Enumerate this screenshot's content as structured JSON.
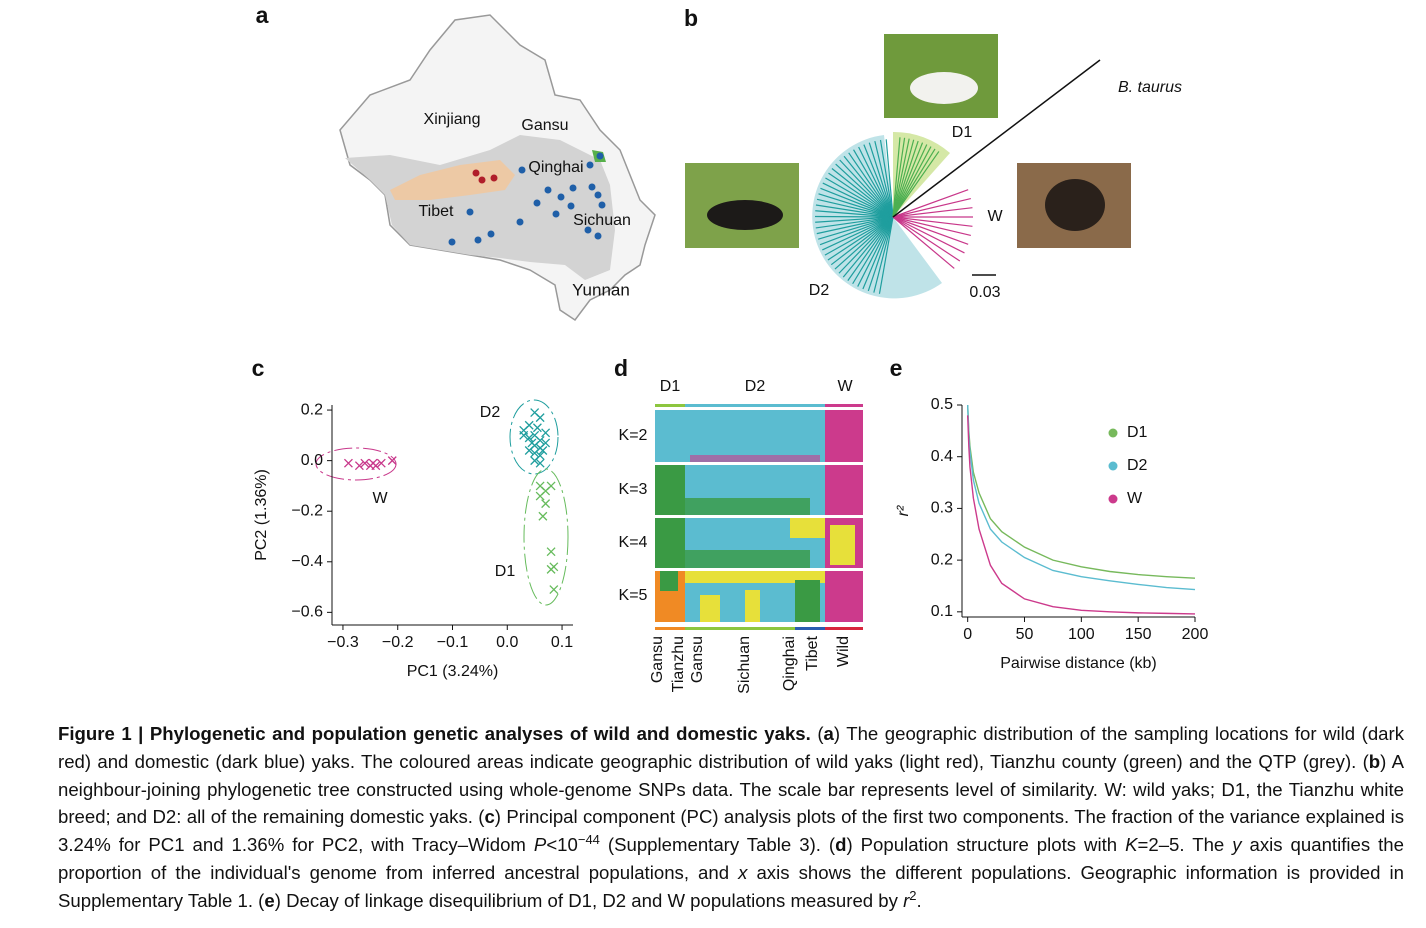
{
  "panels": [
    "a",
    "b",
    "c",
    "d",
    "e"
  ],
  "map": {
    "labels": [
      "Xinjiang",
      "Gansu",
      "Qinghai",
      "Tibet",
      "Sichuan",
      "Yunnan"
    ]
  },
  "tree": {
    "labels": [
      "B. taurus",
      "D1",
      "W",
      "D2"
    ],
    "scale_bar": "0.03"
  },
  "structure": {
    "groups": [
      "D1",
      "D2",
      "W"
    ],
    "k_labels": [
      "K=2",
      "K=3",
      "K=4",
      "K=5"
    ],
    "populations": [
      "Gansu",
      "Tianzhu",
      "Gansu",
      "Sichuan",
      "Qinghai",
      "Tibet",
      "Wild"
    ]
  },
  "chart_data": [
    {
      "type": "scatter",
      "x_label": "PC1 (3.24%)",
      "y_label": "PC2 (1.36%)",
      "xlim": [
        -0.32,
        0.12
      ],
      "ylim": [
        -0.65,
        0.22
      ],
      "xticks": [
        {
          "value": -0.3,
          "label": "−0.3"
        },
        {
          "value": -0.2,
          "label": "−0.2"
        },
        {
          "value": -0.1,
          "label": "−0.1"
        },
        {
          "value": 0,
          "label": "0.0"
        },
        0.1
      ],
      "yticks": [
        0.2,
        {
          "value": 0,
          "label": "0.0"
        },
        {
          "value": -0.2,
          "label": "−0.2"
        },
        {
          "value": -0.4,
          "label": "−0.4"
        },
        {
          "value": -0.6,
          "label": "−0.6"
        }
      ],
      "series": [
        {
          "name": "W",
          "color": "#c8378a",
          "x": [
            -0.29,
            -0.27,
            -0.26,
            -0.25,
            -0.245,
            -0.24,
            -0.23,
            -0.21
          ],
          "values": [
            -0.01,
            -0.02,
            -0.01,
            -0.02,
            -0.01,
            -0.02,
            -0.01,
            0.0
          ]
        },
        {
          "name": "D2",
          "color": "#1f9e9e",
          "x": [
            0.05,
            0.06,
            0.04,
            0.03,
            0.05,
            0.07,
            0.06,
            0.04,
            0.05,
            0.06,
            0.03,
            0.05,
            0.07,
            0.06,
            0.05,
            0.04,
            0.06,
            0.055,
            0.065,
            0.045
          ],
          "values": [
            0.19,
            0.17,
            0.14,
            0.12,
            0.1,
            0.11,
            0.08,
            0.09,
            0.06,
            0.05,
            0.1,
            0.03,
            0.07,
            0.02,
            0.0,
            0.04,
            -0.01,
            0.13,
            0.04,
            0.07
          ]
        },
        {
          "name": "D1",
          "color": "#66bb5c",
          "x": [
            0.06,
            0.07,
            0.08,
            0.06,
            0.07,
            0.065,
            0.08,
            0.085,
            0.08,
            0.085
          ],
          "values": [
            -0.1,
            -0.12,
            -0.1,
            -0.14,
            -0.17,
            -0.22,
            -0.36,
            -0.42,
            -0.43,
            -0.51
          ]
        }
      ]
    },
    {
      "type": "line",
      "x_label": "Pairwise distance (kb)",
      "y_label": "r²",
      "legend": true,
      "xlim": [
        -5,
        200
      ],
      "ylim": [
        0.09,
        0.5
      ],
      "xticks": [
        0,
        50,
        100,
        150,
        200
      ],
      "yticks": [
        0.5,
        0.4,
        0.3,
        0.2,
        0.1
      ],
      "x": [
        0,
        1,
        2,
        5,
        10,
        20,
        30,
        50,
        75,
        100,
        125,
        150,
        175,
        200
      ],
      "series": [
        {
          "name": "D1",
          "color": "#77b95c",
          "values": [
            0.5,
            0.45,
            0.42,
            0.37,
            0.33,
            0.28,
            0.255,
            0.225,
            0.2,
            0.187,
            0.178,
            0.172,
            0.168,
            0.165
          ]
        },
        {
          "name": "D2",
          "color": "#5bbcd0",
          "values": [
            0.5,
            0.44,
            0.41,
            0.355,
            0.31,
            0.26,
            0.235,
            0.205,
            0.18,
            0.168,
            0.16,
            0.153,
            0.147,
            0.143
          ]
        },
        {
          "name": "W",
          "color": "#cc3a8c",
          "values": [
            0.48,
            0.42,
            0.38,
            0.32,
            0.26,
            0.19,
            0.155,
            0.125,
            0.11,
            0.103,
            0.1,
            0.098,
            0.097,
            0.096
          ]
        }
      ]
    }
  ],
  "caption": {
    "runs": [
      {
        "text": "Figure 1 | Phylogenetic and population genetic analyses of wild and domestic yaks.",
        "style": "b"
      },
      {
        "text": " ("
      },
      {
        "text": "a",
        "style": "b"
      },
      {
        "text": ") The geographic distribution of the sampling locations for wild (dark red) and domestic (dark blue) yaks. The coloured areas indicate geographic distribution of wild yaks (light red), Tianzhu county (green) and the QTP (grey). ("
      },
      {
        "text": "b",
        "style": "b"
      },
      {
        "text": ") A neighbour-joining phylogenetic tree constructed using whole-genome SNPs data. The scale bar represents level of similarity. W: wild yaks; D1, the Tianzhu white breed; and D2: all of the remaining domestic yaks. ("
      },
      {
        "text": "c",
        "style": "b"
      },
      {
        "text": ") Principal component (PC) analysis plots of the first two components. The fraction of the variance explained is 3.24% for PC1 and 1.36% for PC2, with Tracy–Widom "
      },
      {
        "text": "P",
        "style": "i"
      },
      {
        "text": "<10"
      },
      {
        "text": "−44",
        "style": "s"
      },
      {
        "text": " (Supplementary Table 3). ("
      },
      {
        "text": "d",
        "style": "b"
      },
      {
        "text": ") Population structure plots with "
      },
      {
        "text": "K",
        "style": "i"
      },
      {
        "text": "=2–5. The "
      },
      {
        "text": "y",
        "style": "i"
      },
      {
        "text": " axis quantifies the proportion of the individual's genome from inferred ancestral populations, and "
      },
      {
        "text": "x",
        "style": "i"
      },
      {
        "text": " axis shows the different populations. Geographic information is provided in Supplementary Table 1. ("
      },
      {
        "text": "e",
        "style": "b"
      },
      {
        "text": ") Decay of linkage disequilibrium of D1, D2 and W populations measured by "
      },
      {
        "text": "r",
        "style": "i"
      },
      {
        "text": "2",
        "style": "s"
      },
      {
        "text": "."
      }
    ]
  }
}
